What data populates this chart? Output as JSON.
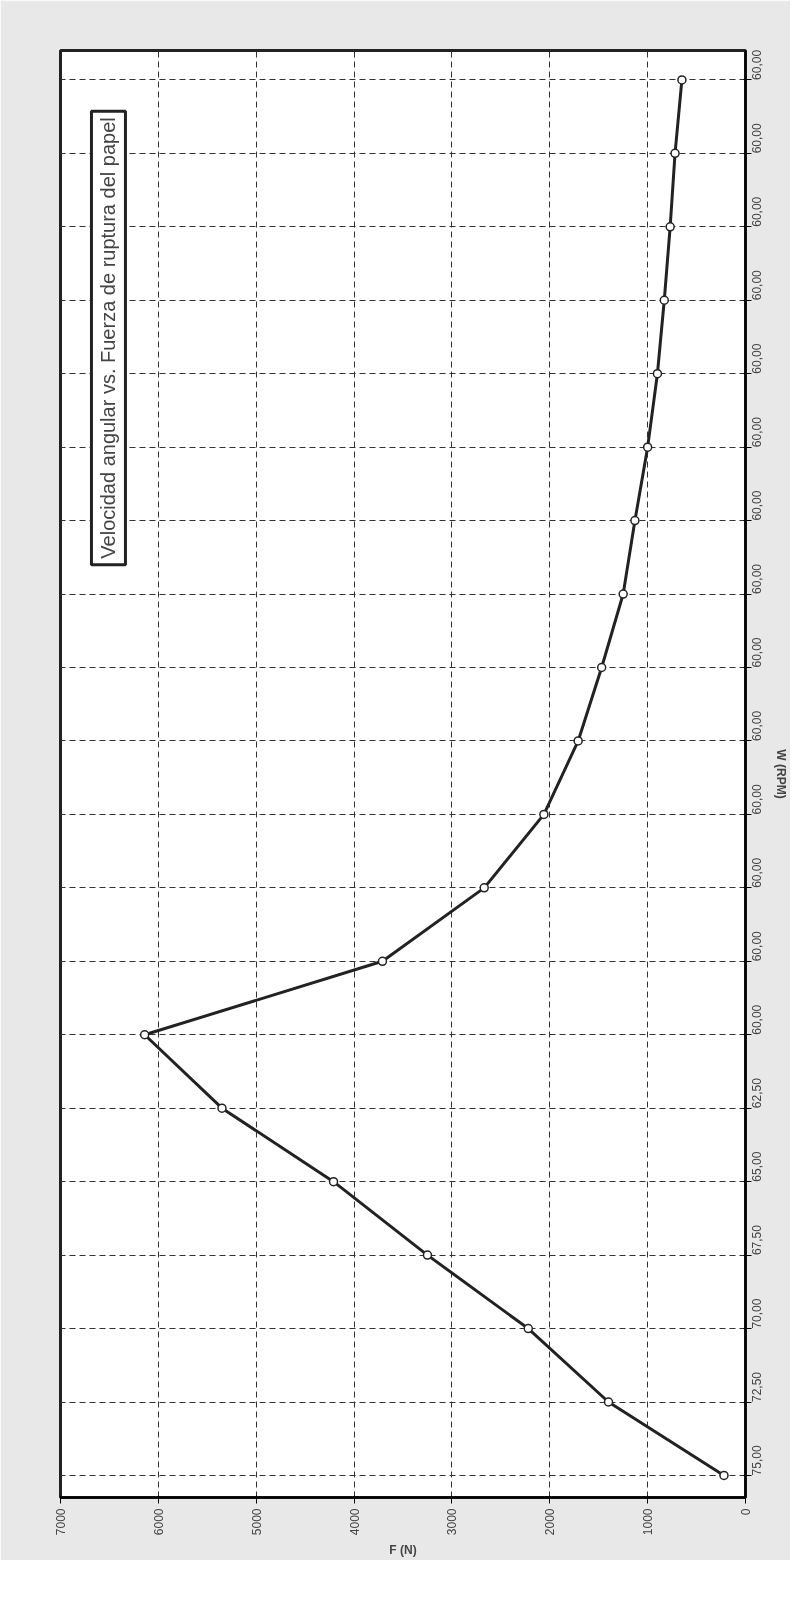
{
  "chart_data": {
    "type": "line",
    "orientation": "horizontal",
    "title": "Velocidad angular vs. Fuerza de ruptura del papel",
    "xlabel": "F (N)",
    "ylabel": "W (RPM)",
    "categories": [
      "60,00",
      "60,00",
      "60,00",
      "60,00",
      "60,00",
      "60,00",
      "60,00",
      "60,00",
      "60,00",
      "60,00",
      "60,00",
      "60,00",
      "60,00",
      "60,00",
      "62,50",
      "65,00",
      "67,50",
      "70,00",
      "72,50",
      "75,00"
    ],
    "series": [
      {
        "color": "#222222",
        "values": [
          650,
          720,
          770,
          830,
          900,
          1000,
          1130,
          1250,
          1470,
          1710,
          2060,
          2670,
          3710,
          6140,
          5350,
          4210,
          3250,
          2220,
          1400,
          220
        ]
      }
    ],
    "xlim": [
      7000,
      0
    ],
    "xticks": [
      0,
      1000,
      2000,
      3000,
      4000,
      5000,
      6000,
      7000
    ],
    "grid": true,
    "marker": "circle",
    "line_style": "solid"
  }
}
